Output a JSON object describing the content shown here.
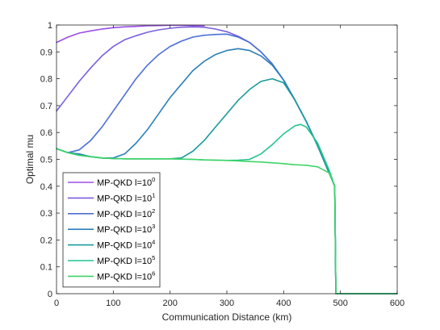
{
  "chart_data": {
    "type": "line",
    "xlabel": "Communication Distance (km)",
    "ylabel": "Optimal mu",
    "xlim": [
      0,
      600
    ],
    "ylim": [
      0,
      1
    ],
    "xticks": [
      "0",
      "100",
      "200",
      "300",
      "400",
      "500",
      "600"
    ],
    "yticks": [
      "0",
      "0.1",
      "0.2",
      "0.3",
      "0.4",
      "0.5",
      "0.6",
      "0.7",
      "0.8",
      "0.9",
      "1"
    ],
    "grid": false,
    "legend_position": "lower-left",
    "series": [
      {
        "name": "MP-QKD l=10",
        "exponent": "0",
        "color": "#9b4ee8",
        "x": [
          0,
          20,
          40,
          60,
          80,
          100,
          120,
          140,
          160,
          180,
          200,
          220,
          240,
          260
        ],
        "y": [
          0.935,
          0.955,
          0.97,
          0.978,
          0.985,
          0.99,
          0.993,
          0.995,
          0.997,
          0.998,
          0.999,
          0.999,
          0.998,
          0.997
        ]
      },
      {
        "name": "MP-QKD l=10",
        "exponent": "1",
        "color": "#7a5fe0",
        "x": [
          0,
          20,
          40,
          60,
          80,
          100,
          120,
          140,
          160,
          180,
          200,
          220,
          240,
          260,
          280,
          300,
          320,
          340,
          360,
          380,
          400,
          420,
          440,
          460,
          480,
          490,
          492,
          600
        ],
        "y": [
          0.68,
          0.735,
          0.79,
          0.84,
          0.885,
          0.92,
          0.945,
          0.96,
          0.973,
          0.982,
          0.988,
          0.992,
          0.993,
          0.992,
          0.985,
          0.975,
          0.958,
          0.935,
          0.9,
          0.855,
          0.795,
          0.72,
          0.64,
          0.55,
          0.45,
          0.4,
          0.0,
          0.0
        ]
      },
      {
        "name": "MP-QKD l=10",
        "exponent": "2",
        "color": "#4a6fd6",
        "x": [
          0,
          20,
          40,
          60,
          80,
          100,
          120,
          140,
          160,
          180,
          200,
          220,
          240,
          260,
          280,
          300,
          320,
          340,
          360,
          380,
          400,
          420,
          440,
          460,
          480,
          490,
          492,
          600
        ],
        "y": [
          0.54,
          0.525,
          0.535,
          0.57,
          0.62,
          0.68,
          0.74,
          0.8,
          0.85,
          0.89,
          0.92,
          0.94,
          0.955,
          0.962,
          0.965,
          0.966,
          0.955,
          0.935,
          0.9,
          0.855,
          0.795,
          0.72,
          0.64,
          0.55,
          0.45,
          0.4,
          0.0,
          0.0
        ]
      },
      {
        "name": "MP-QKD l=10",
        "exponent": "3",
        "color": "#2a7fb8",
        "x": [
          0,
          20,
          40,
          60,
          80,
          100,
          120,
          140,
          160,
          180,
          200,
          220,
          240,
          260,
          280,
          300,
          320,
          340,
          360,
          380,
          400,
          420,
          440,
          460,
          480,
          490,
          492,
          600
        ],
        "y": [
          0.54,
          0.525,
          0.52,
          0.51,
          0.505,
          0.505,
          0.52,
          0.56,
          0.61,
          0.67,
          0.73,
          0.78,
          0.83,
          0.865,
          0.89,
          0.905,
          0.912,
          0.905,
          0.885,
          0.85,
          0.795,
          0.72,
          0.64,
          0.55,
          0.45,
          0.4,
          0.0,
          0.0
        ]
      },
      {
        "name": "MP-QKD l=10",
        "exponent": "4",
        "color": "#1a9a9a",
        "x": [
          0,
          20,
          40,
          60,
          80,
          100,
          120,
          140,
          160,
          180,
          200,
          220,
          240,
          260,
          280,
          300,
          320,
          340,
          360,
          380,
          400,
          420,
          440,
          460,
          480,
          490,
          492,
          600
        ],
        "y": [
          0.54,
          0.525,
          0.515,
          0.51,
          0.505,
          0.503,
          0.502,
          0.502,
          0.502,
          0.502,
          0.502,
          0.505,
          0.53,
          0.57,
          0.62,
          0.67,
          0.72,
          0.76,
          0.79,
          0.8,
          0.785,
          0.72,
          0.64,
          0.55,
          0.45,
          0.4,
          0.0,
          0.0
        ]
      },
      {
        "name": "MP-QKD l=10",
        "exponent": "5",
        "color": "#22c48a",
        "x": [
          0,
          20,
          40,
          60,
          80,
          100,
          120,
          140,
          160,
          180,
          200,
          220,
          240,
          260,
          280,
          300,
          320,
          340,
          360,
          380,
          400,
          420,
          430,
          440,
          460,
          480,
          490,
          492,
          600
        ],
        "y": [
          0.54,
          0.525,
          0.515,
          0.51,
          0.505,
          0.503,
          0.502,
          0.502,
          0.502,
          0.502,
          0.502,
          0.501,
          0.5,
          0.498,
          0.497,
          0.496,
          0.497,
          0.5,
          0.52,
          0.555,
          0.595,
          0.625,
          0.63,
          0.62,
          0.56,
          0.46,
          0.4,
          0.0,
          0.0
        ]
      },
      {
        "name": "MP-QKD l=10",
        "exponent": "6",
        "color": "#3fd468",
        "x": [
          0,
          20,
          40,
          60,
          80,
          100,
          120,
          140,
          160,
          180,
          200,
          220,
          240,
          260,
          280,
          300,
          320,
          340,
          360,
          380,
          400,
          420,
          440,
          460,
          480,
          490,
          492,
          600
        ],
        "y": [
          0.54,
          0.525,
          0.515,
          0.51,
          0.505,
          0.503,
          0.502,
          0.502,
          0.502,
          0.502,
          0.502,
          0.501,
          0.5,
          0.498,
          0.497,
          0.496,
          0.494,
          0.492,
          0.49,
          0.487,
          0.484,
          0.48,
          0.478,
          0.472,
          0.45,
          0.4,
          0.0,
          0.0
        ]
      }
    ]
  }
}
